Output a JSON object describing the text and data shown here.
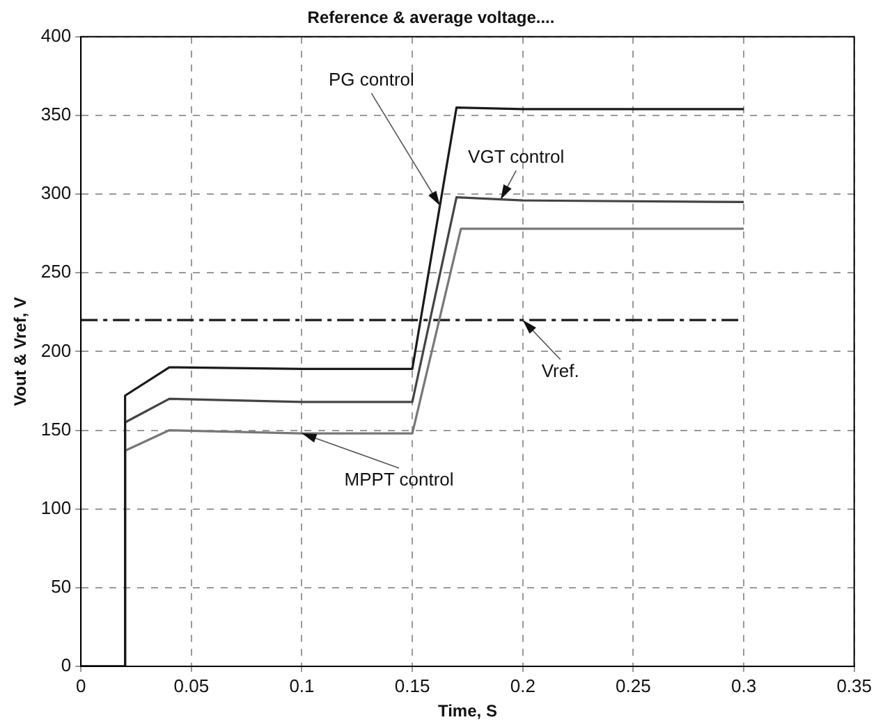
{
  "chart_data": {
    "type": "line",
    "title": "Reference & average voltage....",
    "xlabel": "Time, S",
    "ylabel": "Vout & Vref, V",
    "xlim": [
      0,
      0.35
    ],
    "xticks": [
      0,
      0.05,
      0.1,
      0.15,
      0.2,
      0.25,
      0.3,
      0.35
    ],
    "ylim": [
      0,
      400
    ],
    "yticks": [
      0,
      50,
      100,
      150,
      200,
      250,
      300,
      350,
      400
    ],
    "grid": true,
    "legend": false,
    "marker": "none",
    "series": [
      {
        "name": "PG control",
        "color": "#1a1a1a",
        "x": [
          0,
          0.02,
          0.02,
          0.04,
          0.1,
          0.15,
          0.17,
          0.2,
          0.3
        ],
        "values": [
          0,
          0,
          172,
          190,
          189,
          189,
          355,
          354,
          354
        ]
      },
      {
        "name": "VGT control",
        "color": "#444444",
        "x": [
          0,
          0.02,
          0.02,
          0.04,
          0.1,
          0.15,
          0.17,
          0.2,
          0.3
        ],
        "values": [
          0,
          0,
          155,
          170,
          168,
          168,
          298,
          296,
          295
        ]
      },
      {
        "name": "MPPT control",
        "color": "#777777",
        "x": [
          0,
          0.02,
          0.02,
          0.04,
          0.1,
          0.15,
          0.172,
          0.2,
          0.3
        ],
        "values": [
          0,
          0,
          137,
          150,
          148,
          148,
          278,
          278,
          278
        ]
      },
      {
        "name": "Vref.",
        "color": "#1a1a1a",
        "line_style": "dashed",
        "x": [
          0,
          0.3
        ],
        "values": [
          220,
          220
        ]
      }
    ]
  }
}
